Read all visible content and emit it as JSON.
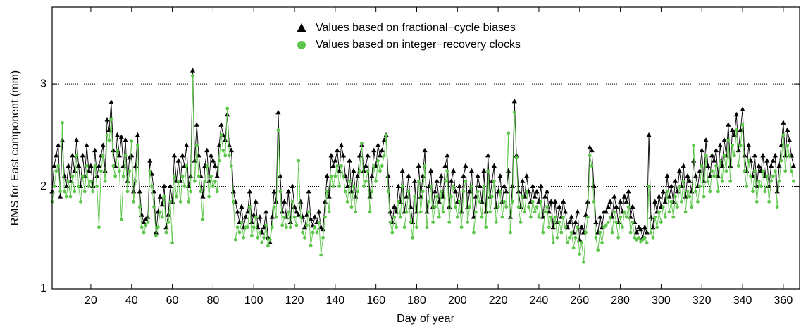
{
  "chart_data": {
    "type": "line",
    "y_label": "RMS for East component (mm)",
    "x_label": "Day of year",
    "xlim": [
      1,
      368
    ],
    "xticks": [
      20,
      40,
      60,
      80,
      100,
      120,
      140,
      160,
      180,
      200,
      220,
      240,
      260,
      280,
      300,
      320,
      340,
      360
    ],
    "ylim": [
      1,
      3.75
    ],
    "yticks": [
      1,
      2,
      3
    ],
    "grid": true,
    "x": [
      1,
      2,
      3,
      4,
      5,
      6,
      7,
      8,
      9,
      10,
      11,
      12,
      13,
      14,
      15,
      16,
      17,
      18,
      19,
      20,
      21,
      22,
      23,
      24,
      25,
      26,
      27,
      28,
      29,
      30,
      31,
      32,
      33,
      34,
      35,
      36,
      37,
      38,
      39,
      40,
      41,
      42,
      43,
      44,
      45,
      46,
      47,
      48,
      49,
      50,
      51,
      52,
      53,
      54,
      55,
      56,
      57,
      58,
      59,
      60,
      61,
      62,
      63,
      64,
      65,
      66,
      67,
      68,
      69,
      70,
      71,
      72,
      73,
      74,
      75,
      76,
      77,
      78,
      79,
      80,
      81,
      82,
      83,
      84,
      85,
      86,
      87,
      88,
      89,
      90,
      91,
      92,
      93,
      94,
      95,
      96,
      97,
      98,
      99,
      100,
      101,
      102,
      103,
      104,
      105,
      106,
      107,
      108,
      109,
      110,
      111,
      112,
      113,
      114,
      115,
      116,
      117,
      118,
      119,
      120,
      121,
      122,
      123,
      124,
      125,
      126,
      127,
      128,
      129,
      130,
      131,
      132,
      133,
      134,
      135,
      136,
      137,
      138,
      139,
      140,
      141,
      142,
      143,
      144,
      145,
      146,
      147,
      148,
      149,
      150,
      151,
      152,
      153,
      154,
      155,
      156,
      157,
      158,
      159,
      160,
      161,
      162,
      163,
      164,
      165,
      166,
      167,
      168,
      169,
      170,
      171,
      172,
      173,
      174,
      175,
      176,
      177,
      178,
      179,
      180,
      181,
      182,
      183,
      184,
      185,
      186,
      187,
      188,
      189,
      190,
      191,
      192,
      193,
      194,
      195,
      196,
      197,
      198,
      199,
      200,
      201,
      202,
      203,
      204,
      205,
      206,
      207,
      208,
      209,
      210,
      211,
      212,
      213,
      214,
      215,
      216,
      217,
      218,
      219,
      220,
      221,
      222,
      223,
      224,
      225,
      226,
      227,
      228,
      229,
      230,
      231,
      232,
      233,
      234,
      235,
      236,
      237,
      238,
      239,
      240,
      241,
      242,
      243,
      244,
      245,
      246,
      247,
      248,
      249,
      250,
      251,
      252,
      253,
      254,
      255,
      256,
      257,
      258,
      259,
      260,
      261,
      262,
      263,
      264,
      265,
      266,
      267,
      268,
      269,
      270,
      271,
      272,
      273,
      274,
      275,
      276,
      277,
      278,
      279,
      280,
      281,
      282,
      283,
      284,
      285,
      286,
      287,
      288,
      289,
      290,
      291,
      292,
      293,
      294,
      295,
      296,
      297,
      298,
      299,
      300,
      301,
      302,
      303,
      304,
      305,
      306,
      307,
      308,
      309,
      310,
      311,
      312,
      313,
      314,
      315,
      316,
      317,
      318,
      319,
      320,
      321,
      322,
      323,
      324,
      325,
      326,
      327,
      328,
      329,
      330,
      331,
      332,
      333,
      334,
      335,
      336,
      337,
      338,
      339,
      340,
      341,
      342,
      343,
      344,
      345,
      346,
      347,
      348,
      349,
      350,
      351,
      352,
      353,
      354,
      355,
      356,
      357,
      358,
      359,
      360,
      361,
      362,
      363,
      364,
      365
    ],
    "series": [
      {
        "name": "Values based on fractional−cycle biases",
        "color": "#000000",
        "marker": "triangle",
        "values": [
          1.95,
          2.2,
          2.3,
          2.4,
          1.9,
          2.45,
          2.1,
          2.0,
          2.2,
          2.05,
          2.3,
          2.15,
          2.45,
          2.2,
          2.0,
          2.3,
          2.1,
          2.4,
          2.15,
          2.2,
          2.0,
          2.35,
          2.1,
          2.2,
          2.3,
          2.4,
          2.15,
          2.65,
          2.55,
          2.82,
          2.35,
          2.2,
          2.5,
          2.3,
          2.48,
          2.2,
          2.45,
          2.05,
          2.28,
          2.3,
          1.95,
          2.2,
          2.5,
          1.95,
          1.72,
          1.65,
          1.68,
          1.7,
          2.25,
          2.12,
          1.95,
          1.55,
          1.75,
          1.9,
          1.82,
          2.0,
          1.6,
          1.72,
          2.0,
          1.85,
          2.3,
          2.05,
          2.25,
          2.05,
          2.3,
          2.2,
          2.4,
          2.0,
          2.1,
          3.13,
          2.25,
          2.6,
          2.3,
          2.1,
          1.9,
          2.2,
          2.35,
          2.05,
          2.3,
          2.25,
          2.2,
          2.1,
          2.4,
          2.6,
          2.5,
          2.45,
          2.7,
          2.4,
          2.35,
          1.95,
          1.85,
          1.75,
          1.65,
          1.8,
          1.6,
          1.7,
          1.75,
          1.95,
          1.65,
          1.72,
          1.85,
          1.6,
          1.7,
          1.55,
          1.6,
          1.75,
          1.5,
          1.45,
          1.7,
          1.95,
          1.85,
          2.72,
          2.1,
          1.75,
          1.85,
          1.7,
          1.95,
          1.65,
          2.0,
          1.8,
          1.75,
          1.72,
          1.85,
          1.7,
          1.6,
          1.72,
          1.95,
          1.68,
          1.62,
          1.7,
          1.65,
          1.75,
          1.6,
          1.58,
          1.85,
          2.1,
          1.9,
          2.3,
          2.2,
          2.25,
          2.35,
          2.15,
          2.4,
          2.3,
          2.1,
          2.0,
          2.25,
          1.95,
          2.15,
          1.9,
          2.1,
          2.3,
          2.4,
          2.15,
          2.2,
          2.3,
          1.9,
          2.1,
          2.35,
          2.2,
          2.4,
          2.3,
          2.35,
          2.45,
          2.5,
          2.1,
          1.75,
          1.65,
          1.8,
          1.75,
          2.0,
          1.85,
          2.15,
          1.75,
          1.9,
          2.1,
          1.8,
          1.65,
          2.05,
          1.75,
          2.2,
          1.9,
          2.1,
          2.35,
          1.75,
          2.0,
          2.15,
          1.8,
          1.95,
          2.05,
          1.85,
          2.1,
          1.9,
          2.2,
          2.3,
          1.8,
          2.05,
          2.15,
          1.95,
          1.85,
          2.0,
          1.75,
          2.1,
          2.2,
          1.8,
          1.95,
          2.15,
          1.7,
          1.9,
          2.1,
          2.0,
          1.85,
          2.15,
          1.75,
          2.3,
          1.9,
          2.05,
          2.2,
          1.8,
          1.95,
          2.1,
          1.85,
          2.0,
          1.95,
          2.15,
          1.7,
          2.0,
          2.83,
          2.3,
          1.95,
          1.8,
          2.05,
          1.9,
          2.1,
          1.95,
          1.85,
          2.0,
          1.9,
          1.95,
          1.85,
          2.0,
          1.7,
          1.9,
          1.95,
          1.75,
          1.85,
          1.6,
          1.85,
          1.65,
          1.8,
          1.7,
          1.85,
          1.75,
          1.6,
          1.65,
          1.7,
          1.55,
          1.65,
          1.75,
          1.48,
          1.6,
          1.55,
          1.72,
          1.85,
          2.38,
          2.35,
          2.0,
          1.65,
          1.55,
          1.7,
          1.6,
          1.75,
          1.75,
          1.8,
          1.85,
          1.7,
          1.9,
          1.8,
          1.65,
          1.85,
          1.75,
          1.9,
          1.85,
          1.95,
          1.7,
          1.8,
          1.65,
          1.55,
          1.6,
          1.58,
          1.5,
          1.6,
          1.55,
          2.5,
          1.7,
          1.6,
          1.85,
          1.75,
          1.9,
          1.8,
          1.95,
          1.85,
          2.1,
          1.9,
          2.0,
          1.85,
          2.05,
          1.95,
          2.15,
          2.0,
          2.2,
          1.9,
          2.1,
          2.05,
          1.95,
          2.25,
          2.1,
          2.0,
          2.15,
          2.35,
          2.05,
          2.45,
          2.2,
          2.1,
          2.3,
          2.25,
          2.35,
          2.1,
          2.4,
          2.2,
          2.45,
          2.3,
          2.6,
          2.2,
          2.55,
          2.5,
          2.7,
          2.35,
          2.55,
          2.75,
          2.3,
          2.15,
          2.4,
          2.25,
          2.1,
          2.3,
          2.0,
          2.2,
          2.15,
          2.3,
          2.1,
          2.25,
          2.0,
          2.2,
          2.25,
          2.3,
          1.95,
          2.2,
          2.4,
          2.62,
          2.3,
          2.55,
          2.45,
          2.3,
          2.2
        ]
      },
      {
        "name": "Values based on integer−recovery clocks",
        "color": "#5cc64a",
        "marker": "circle",
        "values": [
          1.85,
          2.0,
          2.15,
          2.2,
          1.95,
          2.62,
          1.95,
          1.9,
          2.05,
          1.9,
          2.1,
          1.95,
          2.3,
          2.0,
          1.85,
          2.1,
          1.95,
          2.2,
          2.0,
          2.05,
          1.95,
          2.2,
          2.0,
          1.6,
          2.15,
          2.3,
          2.05,
          2.5,
          2.45,
          2.65,
          2.2,
          2.1,
          2.35,
          2.15,
          1.68,
          2.1,
          2.3,
          1.95,
          2.15,
          2.44,
          1.85,
          2.05,
          2.4,
          1.8,
          1.6,
          1.55,
          1.62,
          1.65,
          2.15,
          2.0,
          1.8,
          1.52,
          1.6,
          1.75,
          1.7,
          1.9,
          1.55,
          1.65,
          1.85,
          1.45,
          2.1,
          1.9,
          2.05,
          1.85,
          2.1,
          2.0,
          2.2,
          1.85,
          1.95,
          3.08,
          2.05,
          2.4,
          2.1,
          1.95,
          1.68,
          2.05,
          2.2,
          1.9,
          2.1,
          2.0,
          2.05,
          1.95,
          2.25,
          2.5,
          2.35,
          2.3,
          2.76,
          2.3,
          2.2,
          1.85,
          1.48,
          1.6,
          1.55,
          1.65,
          1.5,
          1.6,
          1.6,
          1.8,
          1.52,
          1.6,
          1.7,
          1.5,
          1.55,
          1.45,
          1.5,
          1.62,
          1.42,
          1.48,
          1.6,
          1.8,
          1.7,
          2.55,
          1.95,
          1.62,
          1.7,
          1.6,
          1.75,
          1.6,
          1.85,
          1.7,
          1.62,
          2.25,
          1.7,
          1.55,
          1.5,
          1.62,
          1.75,
          1.42,
          1.55,
          1.6,
          1.55,
          1.65,
          1.33,
          1.5,
          1.7,
          1.95,
          1.75,
          2.1,
          2.0,
          2.1,
          2.2,
          2.0,
          2.2,
          2.1,
          1.95,
          1.85,
          2.05,
          1.8,
          2.0,
          1.75,
          1.95,
          2.15,
          2.42,
          2.0,
          2.05,
          2.15,
          1.75,
          1.95,
          2.2,
          2.05,
          2.25,
          2.15,
          2.2,
          2.3,
          2.5,
          1.95,
          1.65,
          1.55,
          1.7,
          1.6,
          1.85,
          1.7,
          2.0,
          1.6,
          1.75,
          1.95,
          1.65,
          1.5,
          1.9,
          1.6,
          2.05,
          1.75,
          1.95,
          2.2,
          1.6,
          1.85,
          2.0,
          1.65,
          1.8,
          1.9,
          1.7,
          1.95,
          1.75,
          2.05,
          2.15,
          1.65,
          1.9,
          2.0,
          1.8,
          1.7,
          1.85,
          1.6,
          1.95,
          2.05,
          1.65,
          1.8,
          2.0,
          1.55,
          1.75,
          1.95,
          1.85,
          1.7,
          2.0,
          1.6,
          2.15,
          1.75,
          1.9,
          2.05,
          1.65,
          1.8,
          1.95,
          1.7,
          1.85,
          1.8,
          2.52,
          1.55,
          1.85,
          2.72,
          2.28,
          1.8,
          1.65,
          1.9,
          1.75,
          1.95,
          1.8,
          1.7,
          1.85,
          1.75,
          1.8,
          1.7,
          1.85,
          1.55,
          1.75,
          1.8,
          1.6,
          1.7,
          1.45,
          1.7,
          1.5,
          1.65,
          1.55,
          1.7,
          1.6,
          1.45,
          1.5,
          1.55,
          1.4,
          1.5,
          1.6,
          1.34,
          1.45,
          1.26,
          1.55,
          1.7,
          2.3,
          2.2,
          1.85,
          1.5,
          1.38,
          1.55,
          1.45,
          1.6,
          1.62,
          1.65,
          1.7,
          1.55,
          1.75,
          1.65,
          1.5,
          1.7,
          1.6,
          1.75,
          1.7,
          1.8,
          1.55,
          1.65,
          1.5,
          1.48,
          1.5,
          1.46,
          1.48,
          1.5,
          1.45,
          2.0,
          1.55,
          1.5,
          1.7,
          1.6,
          1.75,
          1.65,
          1.8,
          1.7,
          1.95,
          1.75,
          1.85,
          1.7,
          1.9,
          1.8,
          2.0,
          1.85,
          2.05,
          1.75,
          1.95,
          1.9,
          1.8,
          2.4,
          1.95,
          1.85,
          2.0,
          2.2,
          1.9,
          2.3,
          2.05,
          1.95,
          2.15,
          2.1,
          2.2,
          1.95,
          2.25,
          2.05,
          2.3,
          2.15,
          2.45,
          2.05,
          2.4,
          2.3,
          2.55,
          2.2,
          2.4,
          2.6,
          2.15,
          2.0,
          2.25,
          2.1,
          1.95,
          2.15,
          1.85,
          2.05,
          2.0,
          2.15,
          1.95,
          2.1,
          1.85,
          2.05,
          2.1,
          2.15,
          1.8,
          2.05,
          2.25,
          2.5,
          2.15,
          2.4,
          2.3,
          2.15,
          2.05
        ]
      }
    ]
  }
}
